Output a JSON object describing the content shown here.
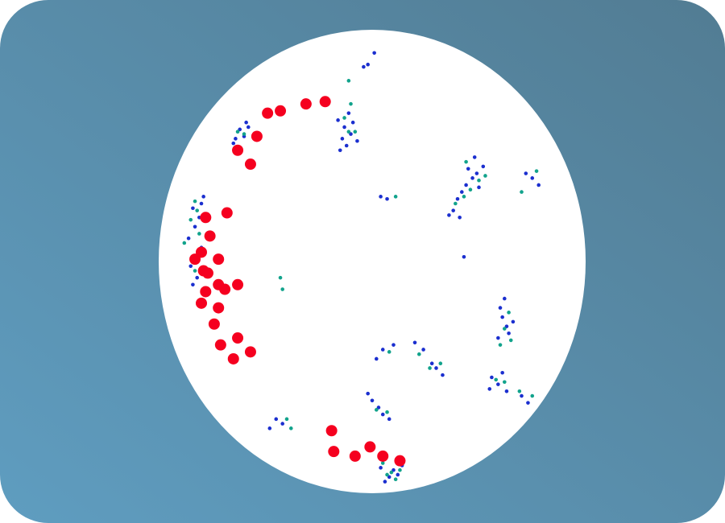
{
  "chart_data": {
    "type": "scatter",
    "xlim": [
      -1,
      1
    ],
    "ylim": [
      -1,
      1
    ],
    "series": [
      {
        "color": "#1b2fcf",
        "x": [
          -0.62,
          -0.6,
          -0.58,
          -0.64,
          -0.59,
          -0.65,
          -0.13,
          -0.1,
          -0.14,
          -0.09,
          -0.12,
          -0.16,
          -0.07,
          -0.11,
          -0.15,
          -0.84,
          -0.81,
          -0.83,
          -0.8,
          -0.86,
          -0.79,
          -0.85,
          -0.82,
          -0.84,
          -0.8,
          0.44,
          0.47,
          0.42,
          0.49,
          0.4,
          0.45,
          0.52,
          0.38,
          0.36,
          0.5,
          0.41,
          0.48,
          0.75,
          0.78,
          0.72,
          0.61,
          0.63,
          0.6,
          0.64,
          0.62,
          0.59,
          0.66,
          0.05,
          0.1,
          0.02,
          0.2,
          0.24,
          0.3,
          0.33,
          0.28,
          0.56,
          0.59,
          0.61,
          0.55,
          0.63,
          0.7,
          0.73,
          0.0,
          0.03,
          -0.02,
          0.05,
          0.08,
          -0.45,
          -0.42,
          -0.48,
          0.08,
          0.1,
          0.06,
          0.12,
          0.04,
          0.14,
          -0.04,
          -0.02,
          0.01,
          0.04,
          0.07,
          0.43
        ],
        "y": [
          0.57,
          0.54,
          0.58,
          0.53,
          0.6,
          0.51,
          0.58,
          0.55,
          0.53,
          0.6,
          0.5,
          0.61,
          0.52,
          0.64,
          0.48,
          0.23,
          0.19,
          0.15,
          0.25,
          0.1,
          0.28,
          -0.02,
          -0.07,
          -0.1,
          0.06,
          0.33,
          0.36,
          0.3,
          0.38,
          0.27,
          0.4,
          0.41,
          0.22,
          0.2,
          0.32,
          0.19,
          0.45,
          0.36,
          0.33,
          0.38,
          -0.24,
          -0.28,
          -0.2,
          -0.31,
          -0.16,
          -0.33,
          -0.26,
          -0.38,
          -0.36,
          -0.42,
          -0.35,
          -0.38,
          -0.46,
          -0.49,
          -0.44,
          -0.5,
          -0.53,
          -0.48,
          -0.55,
          -0.56,
          -0.58,
          -0.61,
          -0.6,
          -0.63,
          -0.57,
          -0.66,
          -0.68,
          -0.68,
          -0.7,
          -0.72,
          -0.93,
          -0.9,
          -0.95,
          -0.92,
          -0.89,
          -0.88,
          0.84,
          0.85,
          0.9,
          0.28,
          0.27,
          0.02
        ]
      },
      {
        "color": "#12a38c",
        "x": [
          -0.6,
          -0.63,
          -0.11,
          -0.13,
          -0.08,
          -0.1,
          -0.82,
          -0.85,
          -0.83,
          -0.81,
          -0.83,
          -0.88,
          0.46,
          0.43,
          0.5,
          0.39,
          0.44,
          0.53,
          0.77,
          0.7,
          0.62,
          0.64,
          0.6,
          0.65,
          0.08,
          0.22,
          0.27,
          0.32,
          0.58,
          0.62,
          0.69,
          0.75,
          0.02,
          0.07,
          -0.4,
          -0.38,
          0.09,
          0.11,
          0.07,
          0.13,
          0.05,
          -0.11,
          0.11,
          -0.43,
          -0.42
        ],
        "y": [
          0.55,
          0.56,
          0.56,
          0.62,
          0.56,
          0.68,
          0.22,
          0.18,
          0.26,
          0.12,
          -0.04,
          0.08,
          0.31,
          0.28,
          0.35,
          0.25,
          0.43,
          0.37,
          0.39,
          0.3,
          -0.29,
          -0.22,
          -0.36,
          -0.34,
          -0.39,
          -0.4,
          -0.46,
          -0.44,
          -0.51,
          -0.52,
          -0.56,
          -0.58,
          -0.64,
          -0.65,
          -0.68,
          -0.72,
          -0.91,
          -0.94,
          -0.92,
          -0.9,
          -0.87,
          0.78,
          0.28,
          -0.07,
          -0.12
        ]
      },
      {
        "color": "#f5001f",
        "x": [
          -0.49,
          -0.43,
          -0.31,
          -0.22,
          -0.54,
          -0.63,
          -0.57,
          -0.68,
          -0.78,
          -0.76,
          -0.8,
          -0.72,
          -0.83,
          -0.79,
          -0.77,
          -0.72,
          -0.69,
          -0.63,
          -0.78,
          -0.8,
          -0.72,
          -0.74,
          -0.63,
          -0.71,
          -0.57,
          -0.65,
          -0.19,
          -0.18,
          -0.08,
          -0.01,
          0.05,
          0.13
        ],
        "y": [
          0.64,
          0.65,
          0.68,
          0.69,
          0.54,
          0.48,
          0.42,
          0.21,
          0.19,
          0.11,
          0.04,
          0.01,
          0.01,
          -0.04,
          -0.05,
          -0.1,
          -0.12,
          -0.1,
          -0.13,
          -0.18,
          -0.2,
          -0.27,
          -0.33,
          -0.36,
          -0.39,
          -0.42,
          -0.73,
          -0.82,
          -0.84,
          -0.8,
          -0.84,
          -0.86
        ]
      }
    ]
  }
}
